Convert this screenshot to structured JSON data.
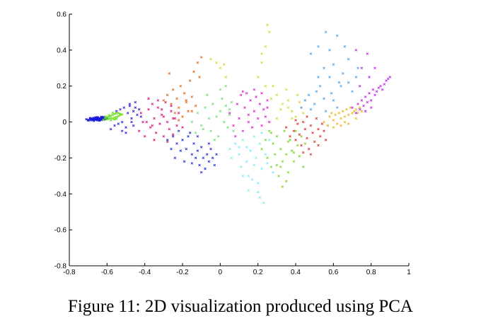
{
  "caption": "Figure 11: 2D visualization produced using PCA",
  "chart_data": {
    "type": "scatter",
    "title": "",
    "xlabel": "",
    "ylabel": "",
    "xlim": [
      -0.8,
      1
    ],
    "ylim": [
      -0.8,
      0.6
    ],
    "grid": false,
    "legend": "none",
    "x_ticks": [
      "-0.8",
      "-0.6",
      "-0.4",
      "-0.2",
      "0",
      "0.2",
      "0.4",
      "0.6",
      "0.8",
      "1"
    ],
    "y_ticks": [
      "0.6",
      "0.4",
      "0.2",
      "0",
      "-0.2",
      "-0.4",
      "-0.6",
      "-0.8"
    ],
    "marker": "x",
    "series": [
      {
        "color": "#1a1adf",
        "x": [
          -0.71,
          -0.7,
          -0.69,
          -0.69,
          -0.68,
          -0.68,
          -0.67,
          -0.67,
          -0.66,
          -0.66,
          -0.66,
          -0.65,
          -0.65,
          -0.65,
          -0.64,
          -0.64,
          -0.64,
          -0.63,
          -0.63,
          -0.63,
          -0.62,
          -0.62,
          -0.61,
          -0.61,
          -0.6,
          -0.7,
          -0.68,
          -0.67,
          -0.66,
          -0.65,
          -0.64,
          -0.63,
          -0.62,
          -0.61,
          -0.69,
          -0.67,
          -0.65,
          -0.64,
          -0.63,
          -0.62
        ],
        "y": [
          0.015,
          0.012,
          0.018,
          0.01,
          0.015,
          0.02,
          0.013,
          0.017,
          0.011,
          0.016,
          0.021,
          0.014,
          0.019,
          0.024,
          0.012,
          0.018,
          0.022,
          0.016,
          0.021,
          0.026,
          0.019,
          0.023,
          0.02,
          0.025,
          0.022,
          0.008,
          0.01,
          0.023,
          0.026,
          0.009,
          0.013,
          0.011,
          0.028,
          0.015,
          0.022,
          0.006,
          0.027,
          0.007,
          0.029,
          0.012
        ]
      },
      {
        "color": "#6fdf1f",
        "x": [
          -0.62,
          -0.61,
          -0.6,
          -0.6,
          -0.59,
          -0.59,
          -0.58,
          -0.58,
          -0.57,
          -0.57,
          -0.56,
          -0.56,
          -0.55,
          -0.55,
          -0.54,
          -0.54,
          -0.53,
          -0.53,
          -0.52,
          -0.58,
          -0.57,
          -0.56,
          -0.55,
          -0.61,
          -0.59
        ],
        "y": [
          0.012,
          0.02,
          0.015,
          0.026,
          0.018,
          0.03,
          0.022,
          0.034,
          0.019,
          0.04,
          0.025,
          0.045,
          0.028,
          0.048,
          0.032,
          0.05,
          0.038,
          0.045,
          0.042,
          0.01,
          0.052,
          0.014,
          0.018,
          0.03,
          0.038
        ]
      },
      {
        "color": "#3a2ad8",
        "x": [
          -0.58,
          -0.56,
          -0.55,
          -0.54,
          -0.53,
          -0.52,
          -0.51,
          -0.5,
          -0.49,
          -0.48,
          -0.47,
          -0.46,
          -0.45,
          -0.44,
          -0.5,
          -0.48,
          -0.46,
          -0.45,
          -0.43,
          -0.42,
          -0.52,
          -0.47
        ],
        "y": [
          -0.04,
          -0.02,
          0.06,
          -0.01,
          0.07,
          0.0,
          0.08,
          -0.03,
          0.05,
          0.09,
          0.02,
          0.06,
          0.08,
          0.04,
          -0.06,
          0.1,
          -0.02,
          0.11,
          0.07,
          0.03,
          -0.05,
          0.0
        ]
      },
      {
        "color": "#d9208a",
        "x": [
          -0.43,
          -0.42,
          -0.4,
          -0.39,
          -0.38,
          -0.37,
          -0.36,
          -0.35,
          -0.34,
          -0.33,
          -0.32,
          -0.31,
          -0.3,
          -0.29,
          -0.28,
          -0.27,
          -0.26,
          -0.25,
          -0.24,
          -0.23,
          -0.22,
          -0.2,
          -0.38,
          -0.35,
          -0.33,
          -0.3,
          -0.28,
          -0.26,
          -0.41,
          -0.36,
          -0.31,
          -0.25
        ],
        "y": [
          -0.05,
          0.05,
          -0.08,
          0.0,
          0.07,
          -0.03,
          0.1,
          0.02,
          -0.06,
          0.08,
          -0.01,
          0.04,
          -0.08,
          0.11,
          0.0,
          -0.04,
          0.06,
          -0.07,
          0.02,
          -0.02,
          0.05,
          -0.03,
          0.13,
          -0.1,
          0.12,
          0.03,
          -0.11,
          0.09,
          0.0,
          -0.02,
          0.07,
          0.02
        ]
      },
      {
        "color": "#2a3ad8",
        "x": [
          -0.28,
          -0.26,
          -0.25,
          -0.24,
          -0.23,
          -0.21,
          -0.2,
          -0.19,
          -0.18,
          -0.17,
          -0.15,
          -0.14,
          -0.13,
          -0.12,
          -0.11,
          -0.1,
          -0.09,
          -0.08,
          -0.07,
          -0.06,
          -0.05,
          -0.04,
          -0.03,
          -0.02,
          -0.22,
          -0.16,
          -0.12,
          -0.06,
          -0.1,
          -0.15
        ],
        "y": [
          -0.1,
          -0.15,
          -0.08,
          -0.2,
          -0.12,
          -0.16,
          -0.1,
          -0.22,
          -0.15,
          -0.08,
          -0.18,
          -0.12,
          -0.2,
          -0.16,
          -0.24,
          -0.14,
          -0.2,
          -0.26,
          -0.18,
          -0.22,
          -0.15,
          -0.2,
          -0.24,
          -0.18,
          -0.05,
          -0.06,
          -0.08,
          -0.12,
          -0.28,
          -0.23
        ]
      },
      {
        "color": "#e87020",
        "x": [
          -0.3,
          -0.28,
          -0.26,
          -0.25,
          -0.24,
          -0.23,
          -0.22,
          -0.21,
          -0.2,
          -0.19,
          -0.18,
          -0.17,
          -0.16,
          -0.15,
          -0.14,
          -0.13,
          -0.12,
          -0.11,
          -0.1,
          -0.27,
          -0.22,
          -0.18,
          -0.15
        ],
        "y": [
          0.12,
          0.15,
          0.1,
          0.18,
          0.05,
          0.13,
          0.08,
          0.2,
          0.03,
          0.16,
          0.11,
          0.06,
          0.23,
          0.14,
          0.28,
          0.09,
          0.33,
          0.25,
          0.36,
          0.27,
          0.01,
          0.12,
          0.06
        ]
      },
      {
        "color": "#7ee07e",
        "x": [
          -0.15,
          -0.12,
          -0.1,
          -0.08,
          -0.06,
          -0.05,
          -0.04,
          -0.02,
          -0.01,
          0.0,
          0.01,
          0.02,
          0.03,
          0.04,
          0.05,
          0.06,
          0.07,
          -0.07,
          -0.03,
          0.0,
          0.03,
          -0.09,
          0.05,
          -0.13
        ],
        "y": [
          0.0,
          0.05,
          -0.02,
          0.08,
          0.02,
          -0.05,
          0.1,
          0.03,
          -0.08,
          0.06,
          0.13,
          0.0,
          0.09,
          -0.03,
          0.04,
          0.11,
          -0.05,
          0.15,
          -0.1,
          0.18,
          0.2,
          -0.04,
          0.07,
          -0.06
        ]
      },
      {
        "color": "#d8d840",
        "x": [
          -0.05,
          -0.02,
          0.0,
          0.02,
          0.03,
          0.2,
          0.22,
          0.24,
          0.25,
          0.26,
          0.28,
          0.3,
          0.33,
          0.36,
          0.38,
          0.4,
          0.42,
          0.44,
          0.45,
          0.24,
          0.27,
          0.32,
          0.35,
          0.38,
          0.41,
          0.43,
          0.22,
          0.3,
          0.36
        ],
        "y": [
          0.35,
          0.33,
          0.3,
          0.32,
          0.25,
          0.25,
          0.38,
          0.42,
          0.54,
          0.5,
          0.2,
          0.15,
          0.1,
          0.08,
          0.06,
          0.03,
          0.11,
          0.05,
          0.12,
          0.2,
          0.13,
          0.07,
          0.18,
          0.02,
          0.15,
          0.08,
          0.33,
          0.02,
          0.12
        ]
      },
      {
        "color": "#e030d0",
        "x": [
          0.05,
          0.07,
          0.09,
          0.1,
          0.11,
          0.12,
          0.13,
          0.14,
          0.15,
          0.16,
          0.17,
          0.18,
          0.19,
          0.2,
          0.21,
          0.22,
          0.23,
          0.24,
          0.25,
          0.26,
          0.08,
          0.12,
          0.15,
          0.18,
          0.22,
          0.25
        ],
        "y": [
          0.05,
          -0.02,
          0.1,
          0.02,
          0.15,
          -0.05,
          0.08,
          0.16,
          0.0,
          0.12,
          -0.03,
          0.06,
          0.14,
          0.02,
          0.1,
          -0.02,
          0.07,
          0.03,
          0.12,
          0.0,
          -0.08,
          0.17,
          0.04,
          0.18,
          0.16,
          0.08
        ]
      },
      {
        "color": "#80f0f8",
        "x": [
          0.05,
          0.06,
          0.08,
          0.1,
          0.11,
          0.12,
          0.14,
          0.15,
          0.16,
          0.18,
          0.19,
          0.2,
          0.21,
          0.22,
          0.24,
          0.25,
          0.26,
          0.28,
          0.1,
          0.14,
          0.18,
          0.22,
          0.15,
          0.2,
          0.21,
          0.23,
          0.12,
          0.17
        ],
        "y": [
          -0.15,
          -0.2,
          -0.12,
          -0.18,
          -0.25,
          -0.1,
          -0.22,
          -0.3,
          -0.16,
          -0.08,
          -0.2,
          -0.34,
          -0.12,
          -0.26,
          -0.18,
          -0.23,
          -0.1,
          -0.28,
          -0.14,
          -0.14,
          -0.24,
          -0.06,
          -0.38,
          -0.39,
          -0.42,
          -0.45,
          -0.3,
          -0.32
        ]
      },
      {
        "color": "#80d830",
        "x": [
          0.22,
          0.24,
          0.25,
          0.26,
          0.27,
          0.28,
          0.29,
          0.3,
          0.31,
          0.32,
          0.33,
          0.34,
          0.35,
          0.36,
          0.37,
          0.38,
          0.39,
          0.4,
          0.41,
          0.42,
          0.43,
          0.44,
          0.45,
          0.3,
          0.33,
          0.36,
          0.27,
          0.39,
          0.35,
          0.32
        ],
        "y": [
          -0.15,
          -0.1,
          -0.2,
          -0.05,
          -0.25,
          -0.12,
          -0.18,
          -0.08,
          -0.3,
          -0.15,
          -0.22,
          -0.05,
          -0.18,
          -0.28,
          -0.1,
          -0.16,
          -0.22,
          -0.05,
          -0.13,
          -0.19,
          -0.08,
          -0.25,
          -0.12,
          -0.24,
          -0.36,
          -0.11,
          -0.06,
          -0.17,
          -0.33,
          -0.25
        ]
      },
      {
        "color": "#d84040",
        "x": [
          0.35,
          0.37,
          0.39,
          0.4,
          0.41,
          0.42,
          0.43,
          0.44,
          0.45,
          0.46,
          0.47,
          0.48,
          0.49,
          0.5,
          0.51,
          0.52,
          0.53,
          0.54,
          0.55,
          0.56,
          0.57,
          0.44,
          0.48,
          0.52,
          0.4,
          0.46
        ],
        "y": [
          -0.03,
          -0.08,
          -0.05,
          -0.1,
          -0.01,
          -0.07,
          -0.13,
          0.0,
          -0.04,
          -0.09,
          -0.15,
          -0.02,
          -0.06,
          -0.11,
          0.02,
          -0.04,
          -0.08,
          -0.01,
          -0.05,
          -0.1,
          -0.02,
          -0.17,
          -0.18,
          -0.13,
          0.01,
          0.03
        ]
      },
      {
        "color": "#5aa8e8",
        "x": [
          0.43,
          0.45,
          0.47,
          0.48,
          0.5,
          0.51,
          0.52,
          0.53,
          0.55,
          0.56,
          0.58,
          0.59,
          0.6,
          0.62,
          0.63,
          0.65,
          0.66,
          0.68,
          0.7,
          0.72,
          0.48,
          0.52,
          0.56,
          0.6,
          0.64,
          0.55,
          0.58,
          0.62,
          0.68,
          0.73
        ],
        "y": [
          0.08,
          0.12,
          0.15,
          0.38,
          0.1,
          0.17,
          0.42,
          0.2,
          0.13,
          0.5,
          0.25,
          0.16,
          0.32,
          0.48,
          0.22,
          0.27,
          0.42,
          0.35,
          0.17,
          0.25,
          0.07,
          0.25,
          0.06,
          0.12,
          0.2,
          0.3,
          0.4,
          0.08,
          0.22,
          0.3
        ]
      },
      {
        "color": "#f0b830",
        "x": [
          0.55,
          0.57,
          0.58,
          0.6,
          0.61,
          0.62,
          0.63,
          0.64,
          0.65,
          0.66,
          0.67,
          0.68,
          0.69,
          0.7,
          0.71,
          0.72,
          0.73,
          0.74,
          0.75,
          0.6,
          0.64,
          0.68,
          0.72,
          0.59,
          0.66
        ],
        "y": [
          0.0,
          -0.02,
          0.03,
          0.01,
          0.04,
          -0.01,
          0.05,
          0.02,
          0.06,
          0.03,
          0.07,
          0.04,
          0.08,
          0.05,
          0.06,
          0.07,
          0.05,
          0.08,
          0.06,
          -0.03,
          -0.02,
          -0.01,
          0.02,
          0.05,
          0.0
        ]
      },
      {
        "color": "#c030e8",
        "x": [
          0.7,
          0.72,
          0.73,
          0.74,
          0.75,
          0.76,
          0.77,
          0.78,
          0.79,
          0.8,
          0.81,
          0.82,
          0.83,
          0.84,
          0.85,
          0.86,
          0.87,
          0.88,
          0.89,
          0.9,
          0.77,
          0.8,
          0.75,
          0.78,
          0.72,
          0.82,
          0.74,
          0.79
        ],
        "y": [
          0.08,
          0.05,
          0.1,
          0.07,
          0.12,
          0.09,
          0.14,
          0.11,
          0.16,
          0.12,
          0.18,
          0.15,
          0.17,
          0.19,
          0.2,
          0.18,
          0.21,
          0.23,
          0.24,
          0.25,
          0.06,
          0.08,
          0.3,
          0.38,
          0.4,
          0.3,
          0.2,
          0.25
        ]
      }
    ]
  }
}
